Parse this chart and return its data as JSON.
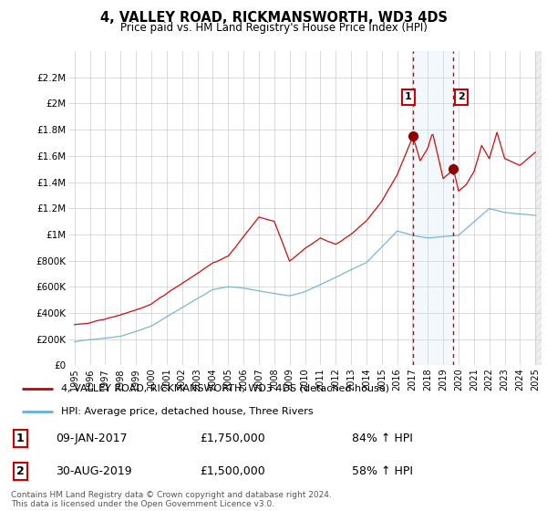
{
  "title": "4, VALLEY ROAD, RICKMANSWORTH, WD3 4DS",
  "subtitle": "Price paid vs. HM Land Registry's House Price Index (HPI)",
  "legend_line1": "4, VALLEY ROAD, RICKMANSWORTH, WD3 4DS (detached house)",
  "legend_line2": "HPI: Average price, detached house, Three Rivers",
  "footnote": "Contains HM Land Registry data © Crown copyright and database right 2024.\nThis data is licensed under the Open Government Licence v3.0.",
  "transaction1_date": "09-JAN-2017",
  "transaction1_price": "£1,750,000",
  "transaction1_hpi": "84% ↑ HPI",
  "transaction2_date": "30-AUG-2019",
  "transaction2_price": "£1,500,000",
  "transaction2_hpi": "58% ↑ HPI",
  "red_color": "#cc0000",
  "blue_color": "#6baed6",
  "shade_color": "#d0e4f7",
  "ylim": [
    0,
    2400000
  ],
  "yticks": [
    0,
    200000,
    400000,
    600000,
    800000,
    1000000,
    1200000,
    1400000,
    1600000,
    1800000,
    2000000,
    2200000
  ],
  "ytick_labels": [
    "£0",
    "£200K",
    "£400K",
    "£600K",
    "£800K",
    "£1M",
    "£1.2M",
    "£1.4M",
    "£1.6M",
    "£1.8M",
    "£2M",
    "£2.2M"
  ],
  "t1_year": 2017.03,
  "t1_price": 1750000,
  "t2_year": 2019.67,
  "t2_price": 1500000,
  "xmin": 1994.6,
  "xmax": 2025.4
}
